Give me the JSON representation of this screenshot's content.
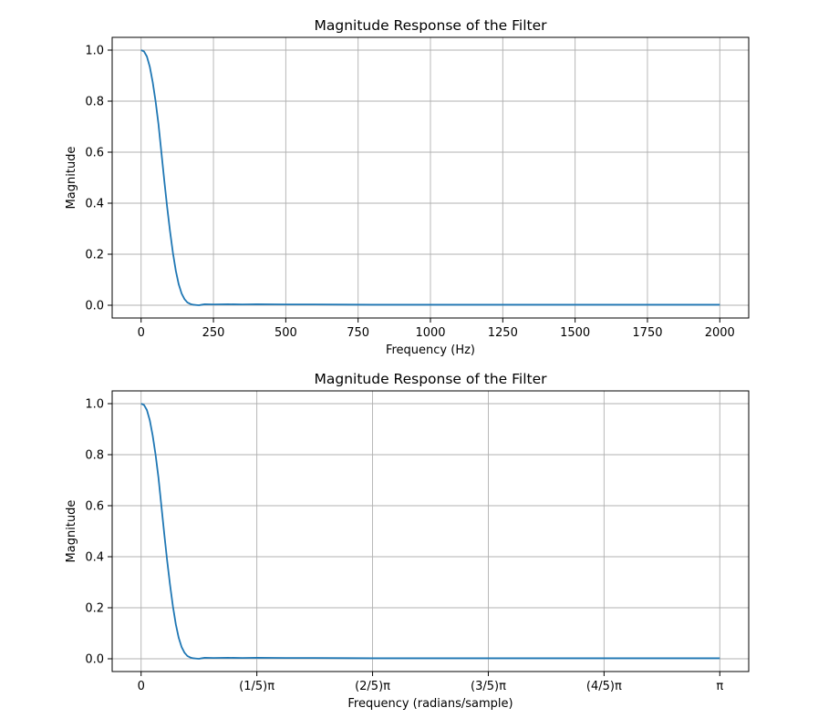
{
  "chart_data": [
    {
      "type": "line",
      "title": "Magnitude Response of the Filter",
      "xlabel": "Frequency (Hz)",
      "ylabel": "Magnitude",
      "xlim": [
        -100,
        2100
      ],
      "ylim": [
        -0.05,
        1.05
      ],
      "grid": true,
      "xticks": [
        {
          "value": 0,
          "label": "0"
        },
        {
          "value": 250,
          "label": "250"
        },
        {
          "value": 500,
          "label": "500"
        },
        {
          "value": 750,
          "label": "750"
        },
        {
          "value": 1000,
          "label": "1000"
        },
        {
          "value": 1250,
          "label": "1250"
        },
        {
          "value": 1500,
          "label": "1500"
        },
        {
          "value": 1750,
          "label": "1750"
        },
        {
          "value": 2000,
          "label": "2000"
        }
      ],
      "yticks": [
        {
          "value": 0.0,
          "label": "0.0"
        },
        {
          "value": 0.2,
          "label": "0.2"
        },
        {
          "value": 0.4,
          "label": "0.4"
        },
        {
          "value": 0.6,
          "label": "0.6"
        },
        {
          "value": 0.8,
          "label": "0.8"
        },
        {
          "value": 1.0,
          "label": "1.0"
        }
      ],
      "series": [
        {
          "color": "#1f77b4",
          "x": [
            0,
            10,
            20,
            30,
            40,
            50,
            60,
            70,
            80,
            90,
            100,
            110,
            120,
            130,
            140,
            150,
            160,
            170,
            180,
            190,
            200,
            210,
            220,
            250,
            300,
            350,
            400,
            500,
            600,
            800,
            1000,
            1250,
            1500,
            1750,
            2000
          ],
          "y": [
            1.0,
            0.995,
            0.975,
            0.935,
            0.875,
            0.8,
            0.71,
            0.6,
            0.49,
            0.385,
            0.29,
            0.205,
            0.135,
            0.082,
            0.046,
            0.024,
            0.011,
            0.005,
            0.002,
            0.001,
            0.0,
            0.002,
            0.004,
            0.003,
            0.004,
            0.003,
            0.004,
            0.003,
            0.003,
            0.002,
            0.002,
            0.002,
            0.002,
            0.002,
            0.002
          ]
        }
      ]
    },
    {
      "type": "line",
      "title": "Magnitude Response of the Filter",
      "xlabel": "Frequency (radians/sample)",
      "ylabel": "Magnitude",
      "xlim": [
        -0.05,
        1.05
      ],
      "x_unit": "pi",
      "ylim": [
        -0.05,
        1.05
      ],
      "grid": true,
      "xticks": [
        {
          "value": 0,
          "label": "0"
        },
        {
          "value": 0.2,
          "label": "(1/5)π"
        },
        {
          "value": 0.4,
          "label": "(2/5)π"
        },
        {
          "value": 0.6,
          "label": "(3/5)π"
        },
        {
          "value": 0.8,
          "label": "(4/5)π"
        },
        {
          "value": 1.0,
          "label": "π"
        }
      ],
      "yticks": [
        {
          "value": 0.0,
          "label": "0.0"
        },
        {
          "value": 0.2,
          "label": "0.2"
        },
        {
          "value": 0.4,
          "label": "0.4"
        },
        {
          "value": 0.6,
          "label": "0.6"
        },
        {
          "value": 0.8,
          "label": "0.8"
        },
        {
          "value": 1.0,
          "label": "1.0"
        }
      ],
      "series": [
        {
          "color": "#1f77b4",
          "x": [
            0,
            0.005,
            0.01,
            0.015,
            0.02,
            0.025,
            0.03,
            0.035,
            0.04,
            0.045,
            0.05,
            0.055,
            0.06,
            0.065,
            0.07,
            0.075,
            0.08,
            0.085,
            0.09,
            0.095,
            0.1,
            0.105,
            0.11,
            0.125,
            0.15,
            0.175,
            0.2,
            0.25,
            0.3,
            0.4,
            0.5,
            0.625,
            0.75,
            0.875,
            1.0
          ],
          "y": [
            1.0,
            0.995,
            0.975,
            0.935,
            0.875,
            0.8,
            0.71,
            0.6,
            0.49,
            0.385,
            0.29,
            0.205,
            0.135,
            0.082,
            0.046,
            0.024,
            0.011,
            0.005,
            0.002,
            0.001,
            0.0,
            0.002,
            0.004,
            0.003,
            0.004,
            0.003,
            0.004,
            0.003,
            0.003,
            0.002,
            0.002,
            0.002,
            0.002,
            0.002,
            0.002
          ]
        }
      ]
    }
  ]
}
